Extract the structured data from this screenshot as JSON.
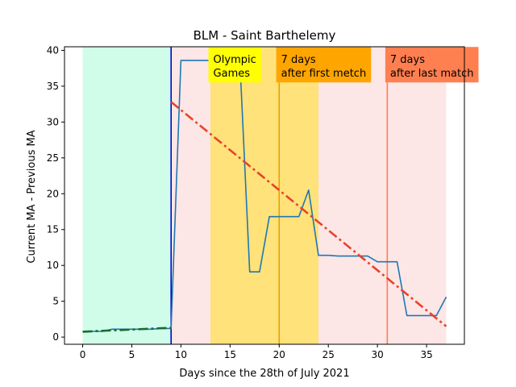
{
  "chart_data": {
    "type": "line",
    "title": "BLM - Saint Barthelemy",
    "xlabel": "Days since the 28th of July 2021",
    "ylabel": "Current MA - Previous MA",
    "xlim": [
      -1.85,
      38.85
    ],
    "ylim": [
      -1.0,
      40.5
    ],
    "xticks": [
      0,
      5,
      10,
      15,
      20,
      25,
      30,
      35
    ],
    "yticks": [
      0,
      5,
      10,
      15,
      20,
      25,
      30,
      35,
      40
    ],
    "grid": false,
    "shaded_regions": [
      {
        "x0": 0,
        "x1": 9,
        "color": "#d0fdea"
      },
      {
        "x0": 9,
        "x1": 37,
        "color": "#fde6e6"
      },
      {
        "x0": 13,
        "x1": 24,
        "color": "#ffe27a"
      }
    ],
    "vertical_lines": [
      {
        "x": 9,
        "color": "#0000cc"
      },
      {
        "x": 20,
        "color": "#e8a000"
      },
      {
        "x": 31,
        "color": "#ff7f50"
      }
    ],
    "annotations": [
      {
        "x": 12.8,
        "y": 36.2,
        "line1": "Olympic",
        "line2": "Games",
        "bg": "#ffff00"
      },
      {
        "x": 19.7,
        "y": 36.2,
        "line1": "7 days",
        "line2": "after first metch",
        "bg": "#ffa500"
      },
      {
        "x": 30.8,
        "y": 36.2,
        "line1": "7 days",
        "line2": "after last match",
        "bg": "#ff7f50"
      }
    ],
    "series": [
      {
        "color": "#1f77b4",
        "x": [
          0,
          1,
          2,
          3,
          4,
          5,
          6,
          7,
          8,
          9,
          10,
          11,
          12,
          13,
          14,
          15,
          16,
          17,
          18,
          19,
          20,
          21,
          22,
          23,
          24,
          25,
          26,
          27,
          28,
          29,
          30,
          31,
          32,
          33,
          34,
          35,
          36,
          37
        ],
        "y": [
          0.8,
          0.8,
          0.8,
          1.1,
          1.1,
          1.1,
          1.1,
          1.1,
          1.2,
          1.2,
          38.6,
          38.6,
          38.6,
          38.6,
          38.6,
          38.6,
          38.6,
          9.1,
          9.1,
          16.8,
          16.8,
          16.8,
          16.8,
          20.5,
          11.4,
          11.4,
          11.3,
          11.3,
          11.3,
          11.3,
          10.5,
          10.5,
          10.5,
          3.0,
          3.0,
          3.0,
          3.0,
          5.6
        ]
      }
    ],
    "trend_lines": [
      {
        "x": [
          0,
          9
        ],
        "y": [
          0.75,
          1.3
        ],
        "color": "#1a6b2f",
        "style": "dash-dot"
      },
      {
        "x": [
          9,
          37
        ],
        "y": [
          32.8,
          1.5
        ],
        "color": "#e8432a",
        "style": "dash-dot"
      }
    ]
  }
}
